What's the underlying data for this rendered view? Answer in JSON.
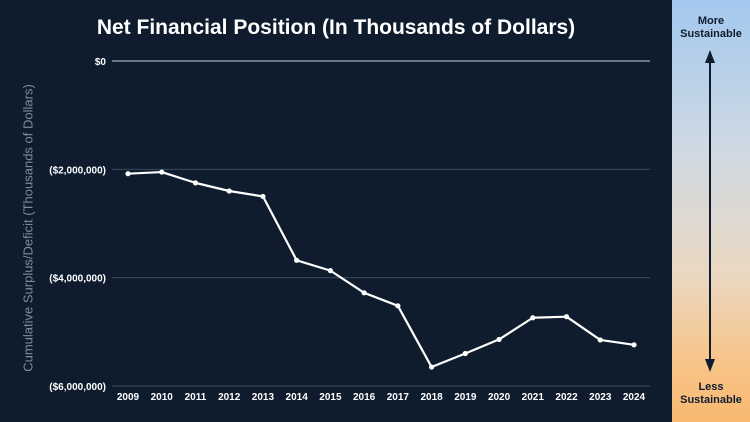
{
  "chart_data": {
    "type": "line",
    "title": "Net Financial Position (In Thousands of Dollars)",
    "ylabel": "Cumulative Surplus/Deficit (Thousands of Dollars)",
    "xlabel": "",
    "ylim": [
      -6000000,
      0
    ],
    "yticks": [
      {
        "value": 0,
        "label": "$0"
      },
      {
        "value": -2000000,
        "label": "($2,000,000)"
      },
      {
        "value": -4000000,
        "label": "($4,000,000)"
      },
      {
        "value": -6000000,
        "label": "($6,000,000)"
      }
    ],
    "categories": [
      "2009",
      "2010",
      "2011",
      "2012",
      "2013",
      "2014",
      "2015",
      "2016",
      "2017",
      "2018",
      "2019",
      "2020",
      "2021",
      "2022",
      "2023",
      "2024"
    ],
    "values": [
      -2080000,
      -2050000,
      -2250000,
      -2400000,
      -2500000,
      -3680000,
      -3870000,
      -4280000,
      -4520000,
      -5650000,
      -5400000,
      -5140000,
      -4740000,
      -4720000,
      -5150000,
      -5240000
    ],
    "grid": true,
    "colors": {
      "background": "#0f1c2e",
      "line": "#ffffff",
      "grid": "#3a4a5e",
      "text": "#ffffff"
    }
  },
  "side_panel": {
    "top_label_line1": "More",
    "top_label_line2": "Sustainable",
    "bottom_label_line1": "Less",
    "bottom_label_line2": "Sustainable"
  }
}
